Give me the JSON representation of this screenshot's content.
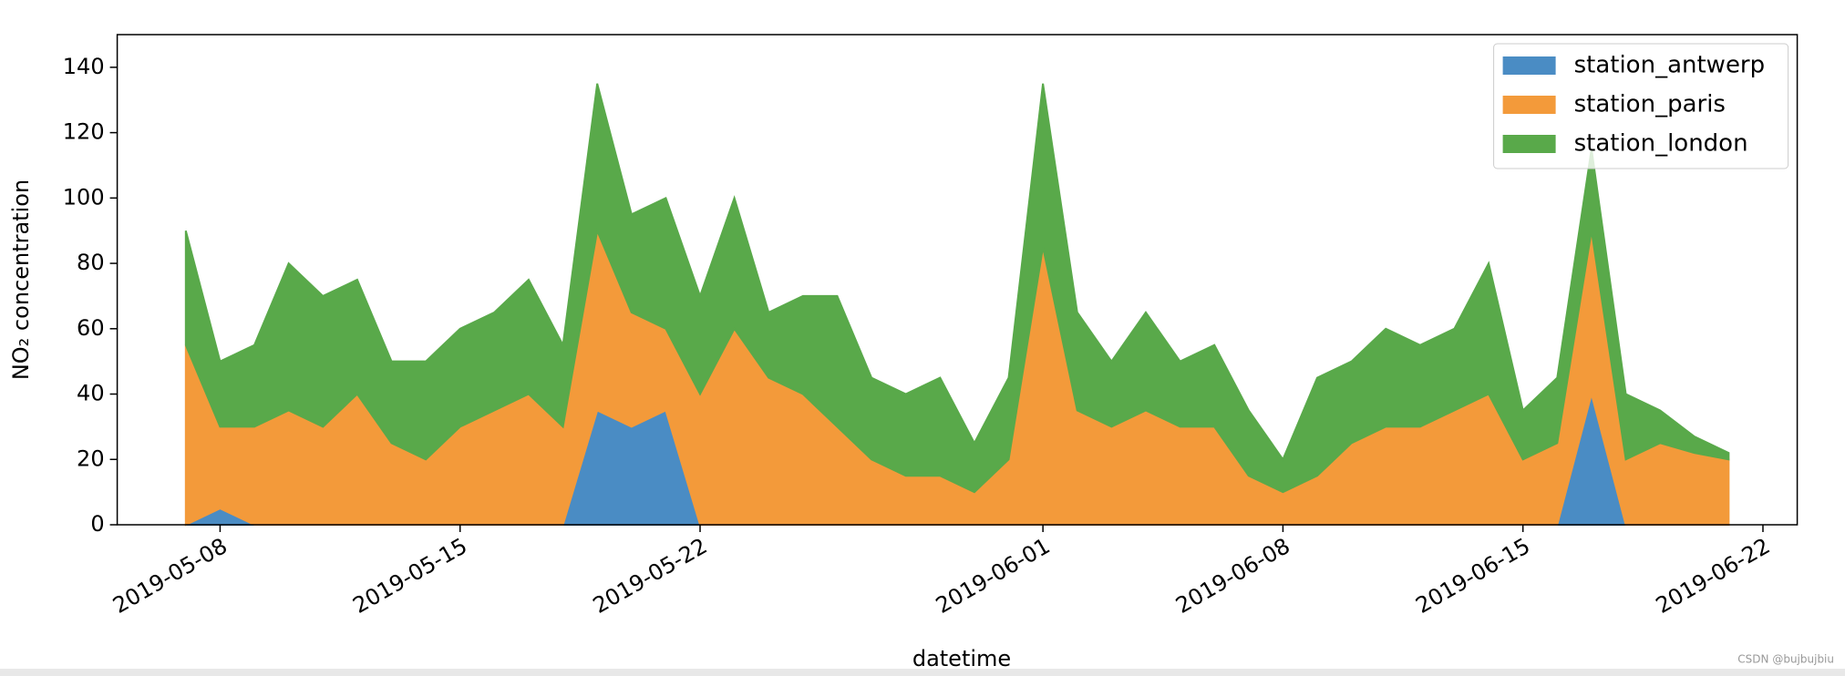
{
  "chart_data": {
    "type": "stacked_area",
    "xlabel": "datetime",
    "ylabel": "NO₂ concentration",
    "watermark": "CSDN @bujbujbiu",
    "x": [
      "2019-05-07",
      "2019-05-08",
      "2019-05-09",
      "2019-05-10",
      "2019-05-11",
      "2019-05-12",
      "2019-05-13",
      "2019-05-14",
      "2019-05-15",
      "2019-05-16",
      "2019-05-17",
      "2019-05-18",
      "2019-05-19",
      "2019-05-20",
      "2019-05-21",
      "2019-05-22",
      "2019-05-23",
      "2019-05-24",
      "2019-05-25",
      "2019-05-26",
      "2019-05-27",
      "2019-05-28",
      "2019-05-29",
      "2019-05-30",
      "2019-05-31",
      "2019-06-01",
      "2019-06-02",
      "2019-06-03",
      "2019-06-04",
      "2019-06-05",
      "2019-06-06",
      "2019-06-07",
      "2019-06-08",
      "2019-06-09",
      "2019-06-10",
      "2019-06-11",
      "2019-06-12",
      "2019-06-13",
      "2019-06-14",
      "2019-06-15",
      "2019-06-16",
      "2019-06-17",
      "2019-06-18",
      "2019-06-19",
      "2019-06-20",
      "2019-06-21"
    ],
    "series": [
      {
        "name": "station_antwerp",
        "color": "#4a8cc4",
        "values": [
          0,
          5,
          0,
          0,
          0,
          0,
          0,
          0,
          0,
          0,
          0,
          0,
          35,
          30,
          35,
          0,
          0,
          0,
          0,
          0,
          0,
          0,
          0,
          0,
          0,
          0,
          0,
          0,
          0,
          0,
          0,
          0,
          0,
          0,
          0,
          0,
          0,
          0,
          0,
          0,
          0,
          40,
          0,
          0,
          0,
          0
        ]
      },
      {
        "name": "station_paris",
        "color": "#f39a3a",
        "values": [
          55,
          25,
          30,
          35,
          30,
          40,
          25,
          20,
          30,
          35,
          40,
          30,
          55,
          35,
          25,
          40,
          60,
          45,
          40,
          30,
          20,
          15,
          15,
          10,
          20,
          85,
          35,
          30,
          35,
          30,
          30,
          15,
          10,
          15,
          25,
          30,
          30,
          35,
          40,
          20,
          25,
          50,
          20,
          25,
          22,
          20
        ]
      },
      {
        "name": "station_london",
        "color": "#59a94a",
        "values": [
          35,
          20,
          25,
          45,
          40,
          35,
          25,
          30,
          30,
          30,
          35,
          25,
          45,
          30,
          40,
          30,
          40,
          20,
          30,
          40,
          25,
          25,
          30,
          15,
          25,
          50,
          30,
          20,
          30,
          20,
          25,
          20,
          10,
          30,
          25,
          30,
          25,
          25,
          40,
          15,
          20,
          25,
          20,
          10,
          5,
          2
        ]
      }
    ],
    "xlim": [
      "2019-05-05",
      "2019-06-23"
    ],
    "xticks": [
      "2019-05-08",
      "2019-05-15",
      "2019-05-22",
      "2019-06-01",
      "2019-06-08",
      "2019-06-15",
      "2019-06-22"
    ],
    "ylim": [
      0,
      150
    ],
    "yticks": [
      0,
      20,
      40,
      60,
      80,
      100,
      120,
      140
    ],
    "legend": "upper right",
    "grid": false
  }
}
